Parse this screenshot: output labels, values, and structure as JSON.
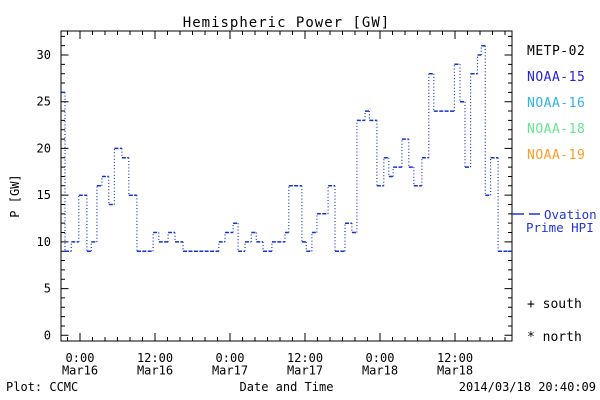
{
  "title": "Hemispheric Power [GW]",
  "footer": {
    "left": "Plot: CCMC",
    "right": "2014/03/18 20:40:09"
  },
  "legend": {
    "satellites": [
      {
        "label": "METP-02",
        "color": "#000000"
      },
      {
        "label": "NOAA-15",
        "color": "#2323dc"
      },
      {
        "label": "NOAA-16",
        "color": "#2fb3e8"
      },
      {
        "label": "NOAA-18",
        "color": "#63e88f"
      },
      {
        "label": "NOAA-19",
        "color": "#ff9d24"
      }
    ],
    "ovation_line1": "Ovation",
    "ovation_line2": "Prime HPI",
    "ovation_color": "#2233dd",
    "south": "+ south",
    "north": "* north"
  },
  "chart_data": {
    "type": "line",
    "subtype": "step-after-dotted",
    "title": "Hemispheric Power [GW]",
    "xlabel": "Date and Time",
    "ylabel": "P [GW]",
    "line_color": "#1133d4",
    "x_unit": "hours from 2014-03-16 00:00 UT",
    "xlim": [
      -3.04,
      69.12
    ],
    "ylim": [
      0,
      32.5
    ],
    "grid": false,
    "y_major_ticks": [
      0,
      5,
      10,
      15,
      20,
      25,
      30
    ],
    "y_minor_step": 1,
    "x_minor_step_hours": 2,
    "x_ticks": [
      {
        "t": 0,
        "time": "0:00",
        "date": "Mar16"
      },
      {
        "t": 12,
        "time": "12:00",
        "date": "Mar16"
      },
      {
        "t": 24,
        "time": "0:00",
        "date": "Mar17"
      },
      {
        "t": 36,
        "time": "12:00",
        "date": "Mar17"
      },
      {
        "t": 48,
        "time": "0:00",
        "date": "Mar18"
      },
      {
        "t": 60,
        "time": "12:00",
        "date": "Mar18"
      }
    ],
    "steps_t_hours_value_gw": [
      [
        -3.0,
        26
      ],
      [
        -2.4,
        9
      ],
      [
        -1.4,
        10
      ],
      [
        -0.2,
        15
      ],
      [
        1.1,
        9
      ],
      [
        1.8,
        10
      ],
      [
        2.7,
        16
      ],
      [
        3.5,
        17
      ],
      [
        4.6,
        14
      ],
      [
        5.5,
        20
      ],
      [
        6.7,
        19
      ],
      [
        7.8,
        15
      ],
      [
        9.1,
        9
      ],
      [
        11.7,
        11
      ],
      [
        12.6,
        10
      ],
      [
        14.1,
        11
      ],
      [
        15.2,
        10
      ],
      [
        16.5,
        9
      ],
      [
        22.2,
        10
      ],
      [
        23.2,
        11
      ],
      [
        24.5,
        12
      ],
      [
        25.3,
        9
      ],
      [
        26.4,
        10
      ],
      [
        27.4,
        11
      ],
      [
        28.2,
        10
      ],
      [
        29.3,
        9
      ],
      [
        30.7,
        10
      ],
      [
        32.8,
        11
      ],
      [
        33.4,
        16
      ],
      [
        35.5,
        10
      ],
      [
        36.2,
        9
      ],
      [
        37.1,
        11
      ],
      [
        37.9,
        13
      ],
      [
        39.7,
        16
      ],
      [
        40.8,
        9
      ],
      [
        42.4,
        12
      ],
      [
        43.5,
        11
      ],
      [
        44.3,
        23
      ],
      [
        45.6,
        24
      ],
      [
        46.3,
        23
      ],
      [
        47.5,
        16
      ],
      [
        48.6,
        19
      ],
      [
        49.4,
        17
      ],
      [
        50.1,
        18
      ],
      [
        51.5,
        21
      ],
      [
        52.6,
        18
      ],
      [
        53.4,
        16
      ],
      [
        54.7,
        19
      ],
      [
        55.8,
        28
      ],
      [
        56.6,
        24
      ],
      [
        59.9,
        29
      ],
      [
        60.8,
        25
      ],
      [
        61.6,
        18
      ],
      [
        62.5,
        28
      ],
      [
        63.6,
        30
      ],
      [
        64.2,
        31
      ],
      [
        64.85,
        15
      ],
      [
        65.7,
        19
      ],
      [
        66.9,
        9
      ]
    ]
  }
}
